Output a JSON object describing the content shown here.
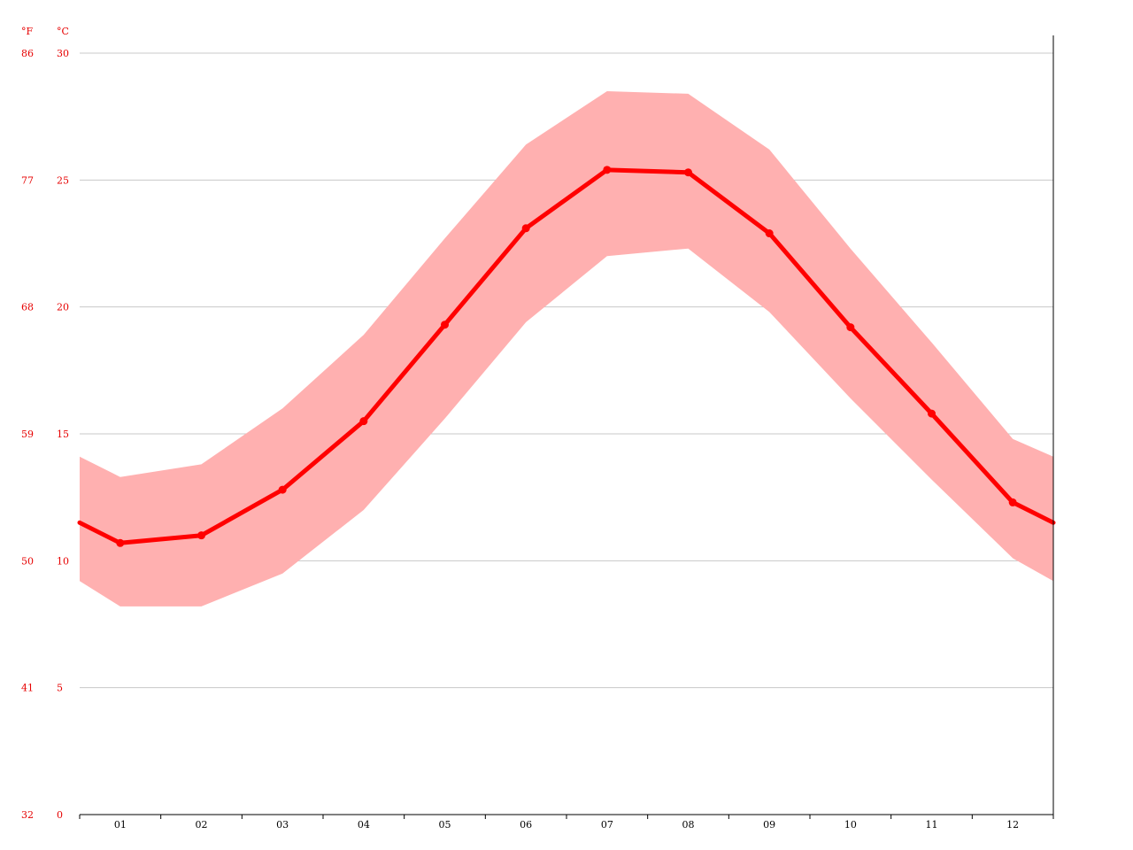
{
  "chart_data": {
    "type": "line",
    "title": "",
    "xlabel": "",
    "ylabel": "",
    "categories": [
      "01",
      "02",
      "03",
      "04",
      "05",
      "06",
      "07",
      "08",
      "09",
      "10",
      "11",
      "12"
    ],
    "ylim": [
      0,
      30
    ],
    "grid": true,
    "units": {
      "left_outer": "°F",
      "left_inner": "°C"
    },
    "yticks_celsius": [
      "0",
      "5",
      "10",
      "15",
      "20",
      "25",
      "30"
    ],
    "yticks_fahrenheit": [
      "32",
      "41",
      "50",
      "59",
      "68",
      "77",
      "86"
    ],
    "series": [
      {
        "values": [
          10.7,
          11.0,
          12.8,
          15.5,
          19.3,
          23.1,
          25.4,
          25.3,
          22.9,
          19.2,
          15.8,
          12.3
        ]
      }
    ],
    "range_band": {
      "low": [
        8.2,
        8.2,
        9.5,
        12.0,
        15.6,
        19.4,
        22.0,
        22.3,
        19.8,
        16.4,
        13.2,
        10.1
      ],
      "high": [
        13.3,
        13.8,
        16.0,
        18.9,
        22.7,
        26.4,
        28.5,
        28.4,
        26.2,
        22.3,
        18.6,
        14.8
      ],
      "edge_start": {
        "low": 9.2,
        "high": 14.1
      },
      "edge_end": {
        "low": 9.2,
        "high": 14.1
      }
    },
    "edge_start_value": 11.5,
    "edge_end_value": 11.5,
    "colors": {
      "line": "#ff0000",
      "band": "#ffb0b0",
      "grid": "#c8c8c8",
      "tick_label": "#e60000",
      "axis": "#000000"
    }
  }
}
